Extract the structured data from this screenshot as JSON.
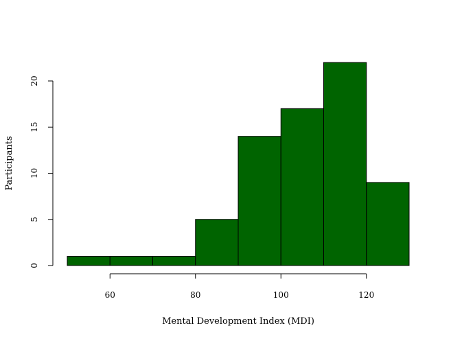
{
  "chart_data": {
    "type": "bar",
    "bins": [
      [
        50,
        60
      ],
      [
        60,
        70
      ],
      [
        70,
        80
      ],
      [
        80,
        90
      ],
      [
        90,
        100
      ],
      [
        100,
        110
      ],
      [
        110,
        120
      ],
      [
        120,
        130
      ]
    ],
    "values": [
      1,
      1,
      1,
      5,
      14,
      17,
      22,
      9
    ],
    "xlabel": "Mental Development Index (MDI)",
    "ylabel": "Participants",
    "xlim": [
      50,
      130
    ],
    "ylim": [
      0,
      22
    ],
    "xticks": [
      60,
      80,
      100,
      120
    ],
    "yticks": [
      0,
      5,
      10,
      15,
      20
    ],
    "bar_color": "#006400",
    "grid": false
  }
}
